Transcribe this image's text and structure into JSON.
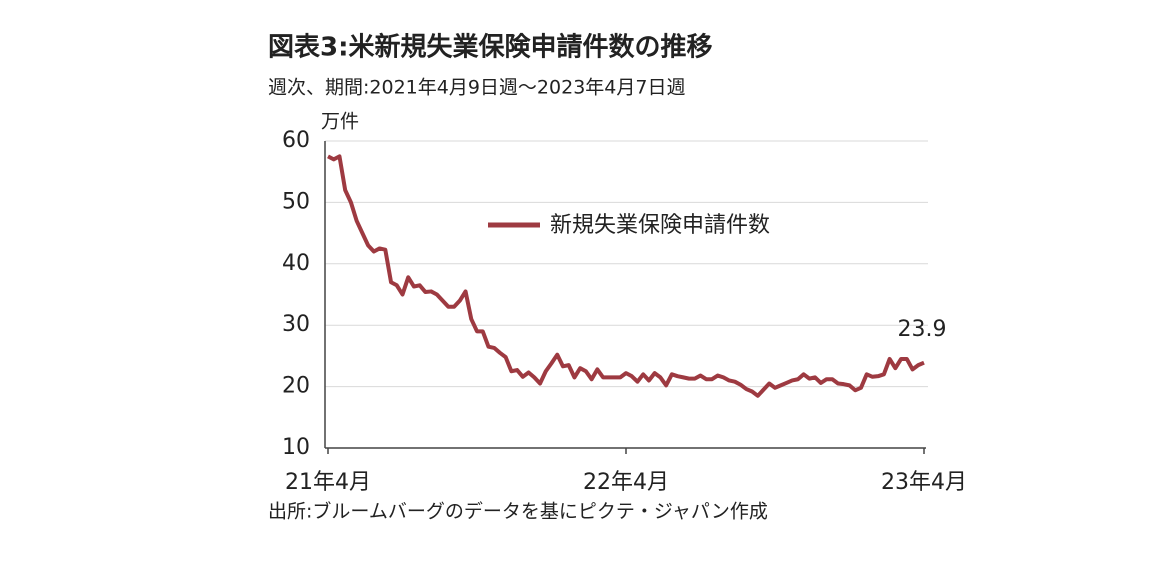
{
  "chart_data": {
    "type": "line",
    "title": "図表3:米新規失業保険申請件数の推移",
    "subtitle": "週次、期間:2021年4月9日週〜2023年4月7日週",
    "y_unit": "万件",
    "source": "出所:ブルームバーグのデータを基にピクテ・ジャパン作成",
    "categories": [
      "21年4月",
      null,
      null,
      null,
      null,
      null,
      null,
      null,
      null,
      null,
      null,
      null,
      null,
      null,
      null,
      null,
      null,
      null,
      null,
      null,
      null,
      null,
      null,
      null,
      null,
      null,
      null,
      null,
      null,
      null,
      null,
      null,
      null,
      null,
      null,
      null,
      null,
      null,
      null,
      null,
      null,
      null,
      null,
      null,
      null,
      null,
      null,
      null,
      null,
      null,
      null,
      null,
      "22年4月",
      null,
      null,
      null,
      null,
      null,
      null,
      null,
      null,
      null,
      null,
      null,
      null,
      null,
      null,
      null,
      null,
      null,
      null,
      null,
      null,
      null,
      null,
      null,
      null,
      null,
      null,
      null,
      null,
      null,
      null,
      null,
      null,
      null,
      null,
      null,
      null,
      null,
      null,
      null,
      null,
      null,
      null,
      null,
      null,
      null,
      null,
      null,
      null,
      null,
      null,
      null,
      "23年4月"
    ],
    "series": [
      {
        "name": "新規失業保険申請件数",
        "color": "#9e3a41",
        "values": [
          57.5,
          57,
          57.5,
          52,
          50,
          47,
          45,
          43,
          42,
          42.5,
          42.3,
          37,
          36.5,
          35,
          37.8,
          36.3,
          36.5,
          35.4,
          35.5,
          35,
          34,
          33,
          33,
          34,
          35.5,
          31,
          29,
          29,
          26.5,
          26.3,
          25.5,
          24.8,
          22.5,
          22.7,
          21.6,
          22.3,
          21.5,
          20.5,
          22.5,
          23.8,
          25.2,
          23.3,
          23.5,
          21.5,
          23,
          22.5,
          21.2,
          22.8,
          21.5,
          21.5,
          21.5,
          21.5,
          22.2,
          21.7,
          20.8,
          22,
          21,
          22.2,
          21.5,
          20.2,
          22,
          21.7,
          21.5,
          21.3,
          21.3,
          21.8,
          21.2,
          21.2,
          21.8,
          21.5,
          21,
          20.8,
          20.3,
          19.6,
          19.2,
          18.5,
          19.5,
          20.5,
          19.8,
          20.2,
          20.6,
          21,
          21.2,
          22,
          21.3,
          21.5,
          20.6,
          21.2,
          21.2,
          20.5,
          20.4,
          20.2,
          19.4,
          19.8,
          22,
          21.6,
          21.7,
          22,
          24.5,
          23,
          24.5,
          24.5,
          22.8,
          23.5,
          23.9
        ]
      }
    ],
    "ylim": [
      10,
      60
    ],
    "yticks": [
      10,
      20,
      30,
      40,
      50,
      60
    ],
    "grid": true
  }
}
